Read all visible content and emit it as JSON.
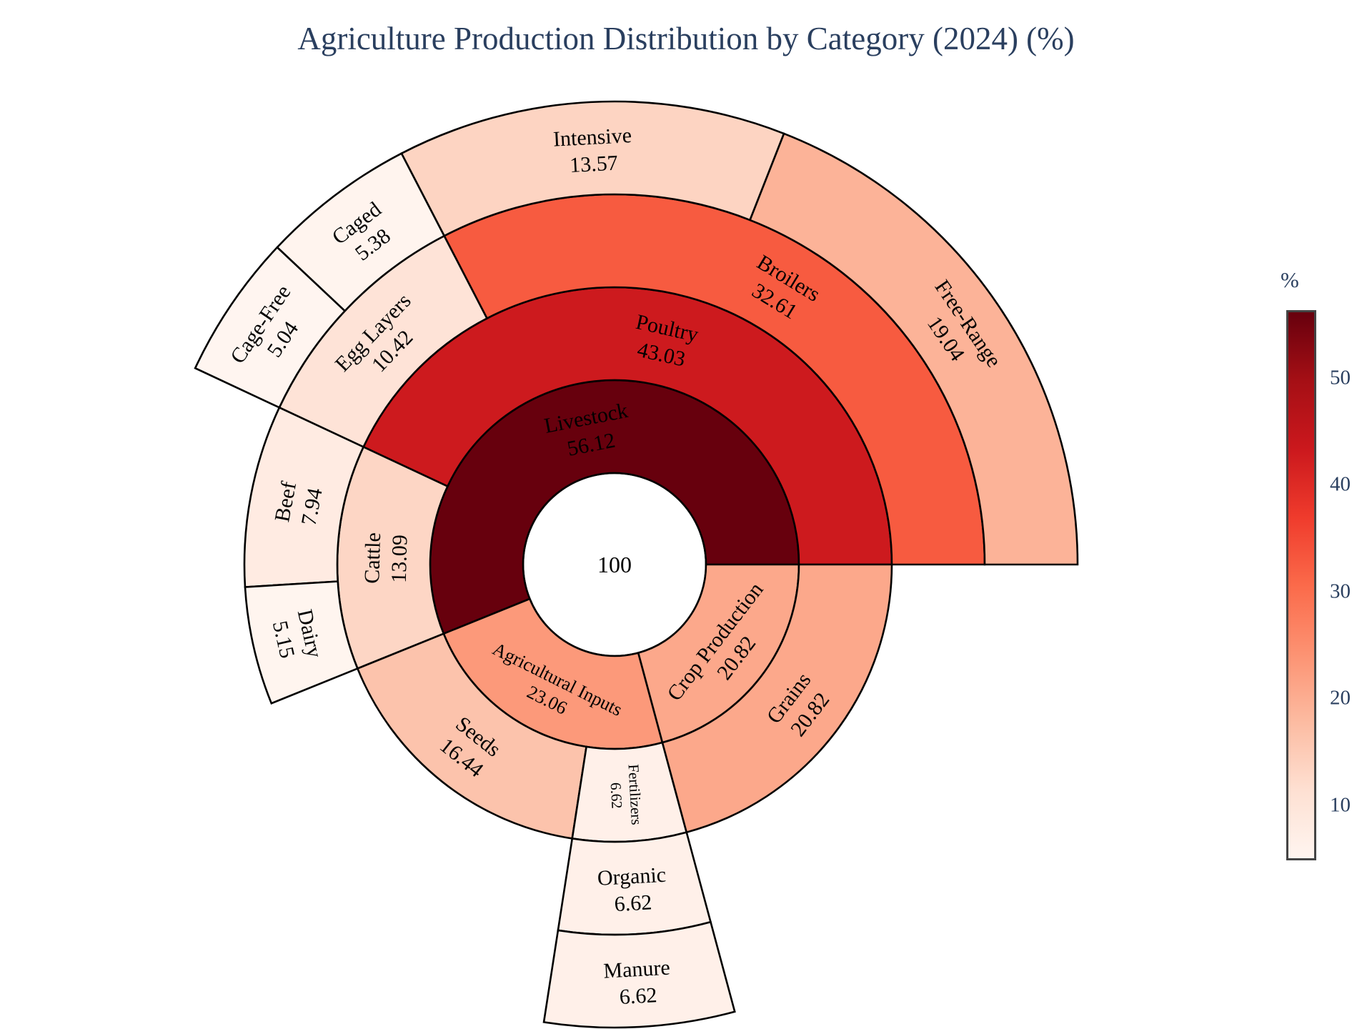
{
  "chart_data": {
    "type": "sunburst",
    "title": "Agriculture Production Distribution by Category (2024) (%)",
    "center_label": "100",
    "colorbar": {
      "title": "%",
      "ticks": [
        10,
        20,
        30,
        40,
        50
      ],
      "min": 5.04,
      "max": 56.12,
      "colorscale": [
        "#fff5f0",
        "#fee0d2",
        "#fcbba1",
        "#fc9272",
        "#fb6a4a",
        "#ef3b2c",
        "#cb181d",
        "#a50f15",
        "#67000d"
      ]
    },
    "nodes": [
      {
        "label": "Livestock",
        "value": 56.12,
        "parent": ""
      },
      {
        "label": "Agricultural Inputs",
        "value": 23.06,
        "parent": ""
      },
      {
        "label": "Crop Production",
        "value": 20.82,
        "parent": ""
      },
      {
        "label": "Poultry",
        "value": 43.03,
        "parent": "Livestock"
      },
      {
        "label": "Cattle",
        "value": 13.09,
        "parent": "Livestock"
      },
      {
        "label": "Seeds",
        "value": 16.44,
        "parent": "Agricultural Inputs"
      },
      {
        "label": "Fertilizers",
        "value": 6.62,
        "parent": "Agricultural Inputs"
      },
      {
        "label": "Grains",
        "value": 20.82,
        "parent": "Crop Production"
      },
      {
        "label": "Broilers",
        "value": 32.61,
        "parent": "Poultry"
      },
      {
        "label": "Egg Layers",
        "value": 10.42,
        "parent": "Poultry"
      },
      {
        "label": "Beef",
        "value": 7.94,
        "parent": "Cattle"
      },
      {
        "label": "Dairy",
        "value": 5.15,
        "parent": "Cattle"
      },
      {
        "label": "Organic",
        "value": 6.62,
        "parent": "Fertilizers"
      },
      {
        "label": "Free-Range",
        "value": 19.04,
        "parent": "Broilers"
      },
      {
        "label": "Intensive",
        "value": 13.57,
        "parent": "Broilers"
      },
      {
        "label": "Caged",
        "value": 5.38,
        "parent": "Egg Layers"
      },
      {
        "label": "Cage-Free",
        "value": 5.04,
        "parent": "Egg Layers"
      },
      {
        "label": "Manure",
        "value": 6.62,
        "parent": "Organic"
      }
    ]
  }
}
